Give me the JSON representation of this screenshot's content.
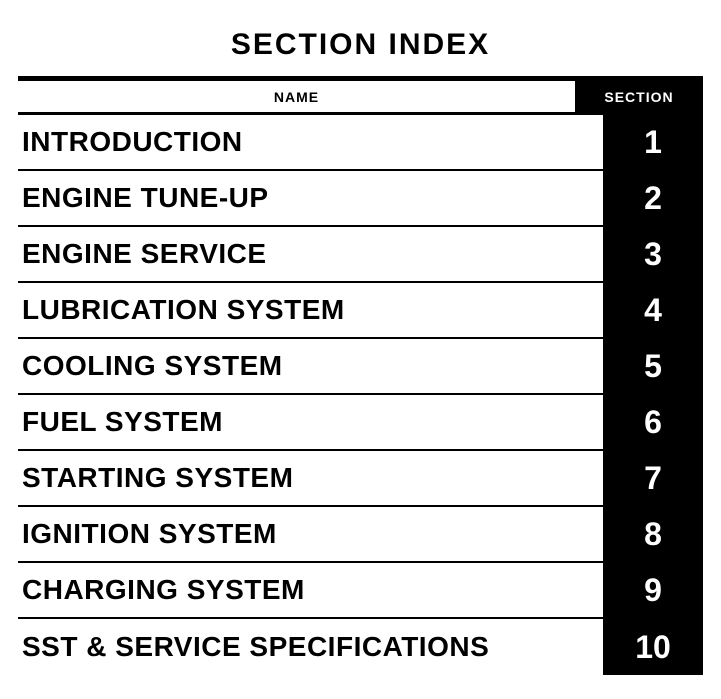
{
  "title": "SECTION INDEX",
  "title_fontsize": 30,
  "header": {
    "name_label": "NAME",
    "section_label": "SECTION",
    "name_fontsize": 14,
    "section_fontsize": 14
  },
  "row_name_fontsize": 28,
  "row_section_fontsize": 32,
  "colors": {
    "text": "#000000",
    "background": "#ffffff",
    "section_bg": "#000000",
    "section_text": "#ffffff",
    "rule": "#000000"
  },
  "rows": [
    {
      "name": "INTRODUCTION",
      "section": "1"
    },
    {
      "name": "ENGINE TUNE-UP",
      "section": "2"
    },
    {
      "name": "ENGINE SERVICE",
      "section": "3"
    },
    {
      "name": "LUBRICATION SYSTEM",
      "section": "4"
    },
    {
      "name": "COOLING SYSTEM",
      "section": "5"
    },
    {
      "name": "FUEL SYSTEM",
      "section": "6"
    },
    {
      "name": "STARTING SYSTEM",
      "section": "7"
    },
    {
      "name": "IGNITION SYSTEM",
      "section": "8"
    },
    {
      "name": "CHARGING SYSTEM",
      "section": "9"
    },
    {
      "name": "SST & SERVICE SPECIFICATIONS",
      "section": "10"
    }
  ]
}
